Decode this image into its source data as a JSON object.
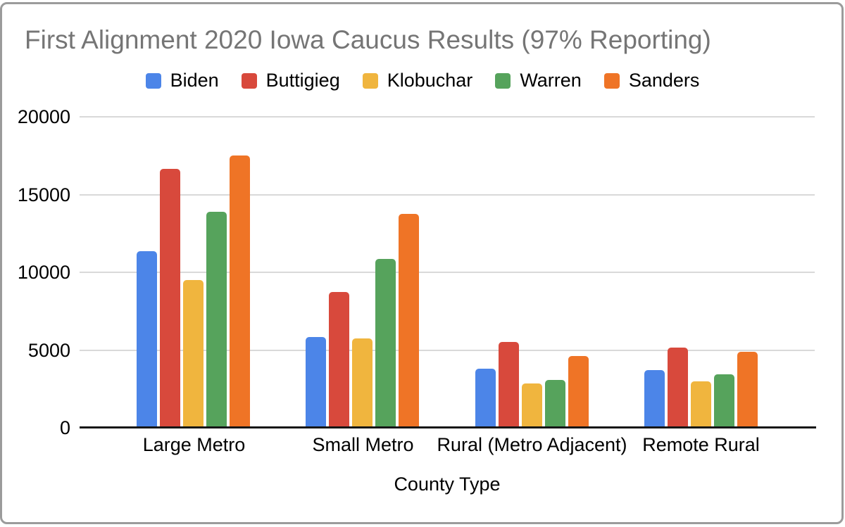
{
  "chart_data": {
    "type": "bar",
    "title": "First Alignment 2020 Iowa Caucus Results (97% Reporting)",
    "xlabel": "County Type",
    "ylabel": "",
    "ylim": [
      0,
      20000
    ],
    "yticks": [
      0,
      5000,
      10000,
      15000,
      20000
    ],
    "grid": true,
    "legend_position": "top",
    "categories": [
      "Large Metro",
      "Small Metro",
      "Rural (Metro Adjacent)",
      "Remote Rural"
    ],
    "series": [
      {
        "name": "Biden",
        "color": "#4C85E8",
        "values": [
          11350,
          5850,
          3800,
          3700
        ]
      },
      {
        "name": "Buttigieg",
        "color": "#D8493C",
        "values": [
          16650,
          8750,
          5500,
          5150
        ]
      },
      {
        "name": "Klobuchar",
        "color": "#F0B53E",
        "values": [
          9500,
          5750,
          2850,
          3000
        ]
      },
      {
        "name": "Warren",
        "color": "#56A35C",
        "values": [
          13900,
          10850,
          3100,
          3450
        ]
      },
      {
        "name": "Sanders",
        "color": "#EF7426",
        "values": [
          17500,
          13750,
          4600,
          4900
        ]
      }
    ],
    "colors": {
      "title_text": "#757575",
      "axis_text": "#000000",
      "gridline": "#D9D9D9",
      "axis_line": "#161616",
      "frame_border": "#9B9B9B"
    }
  }
}
